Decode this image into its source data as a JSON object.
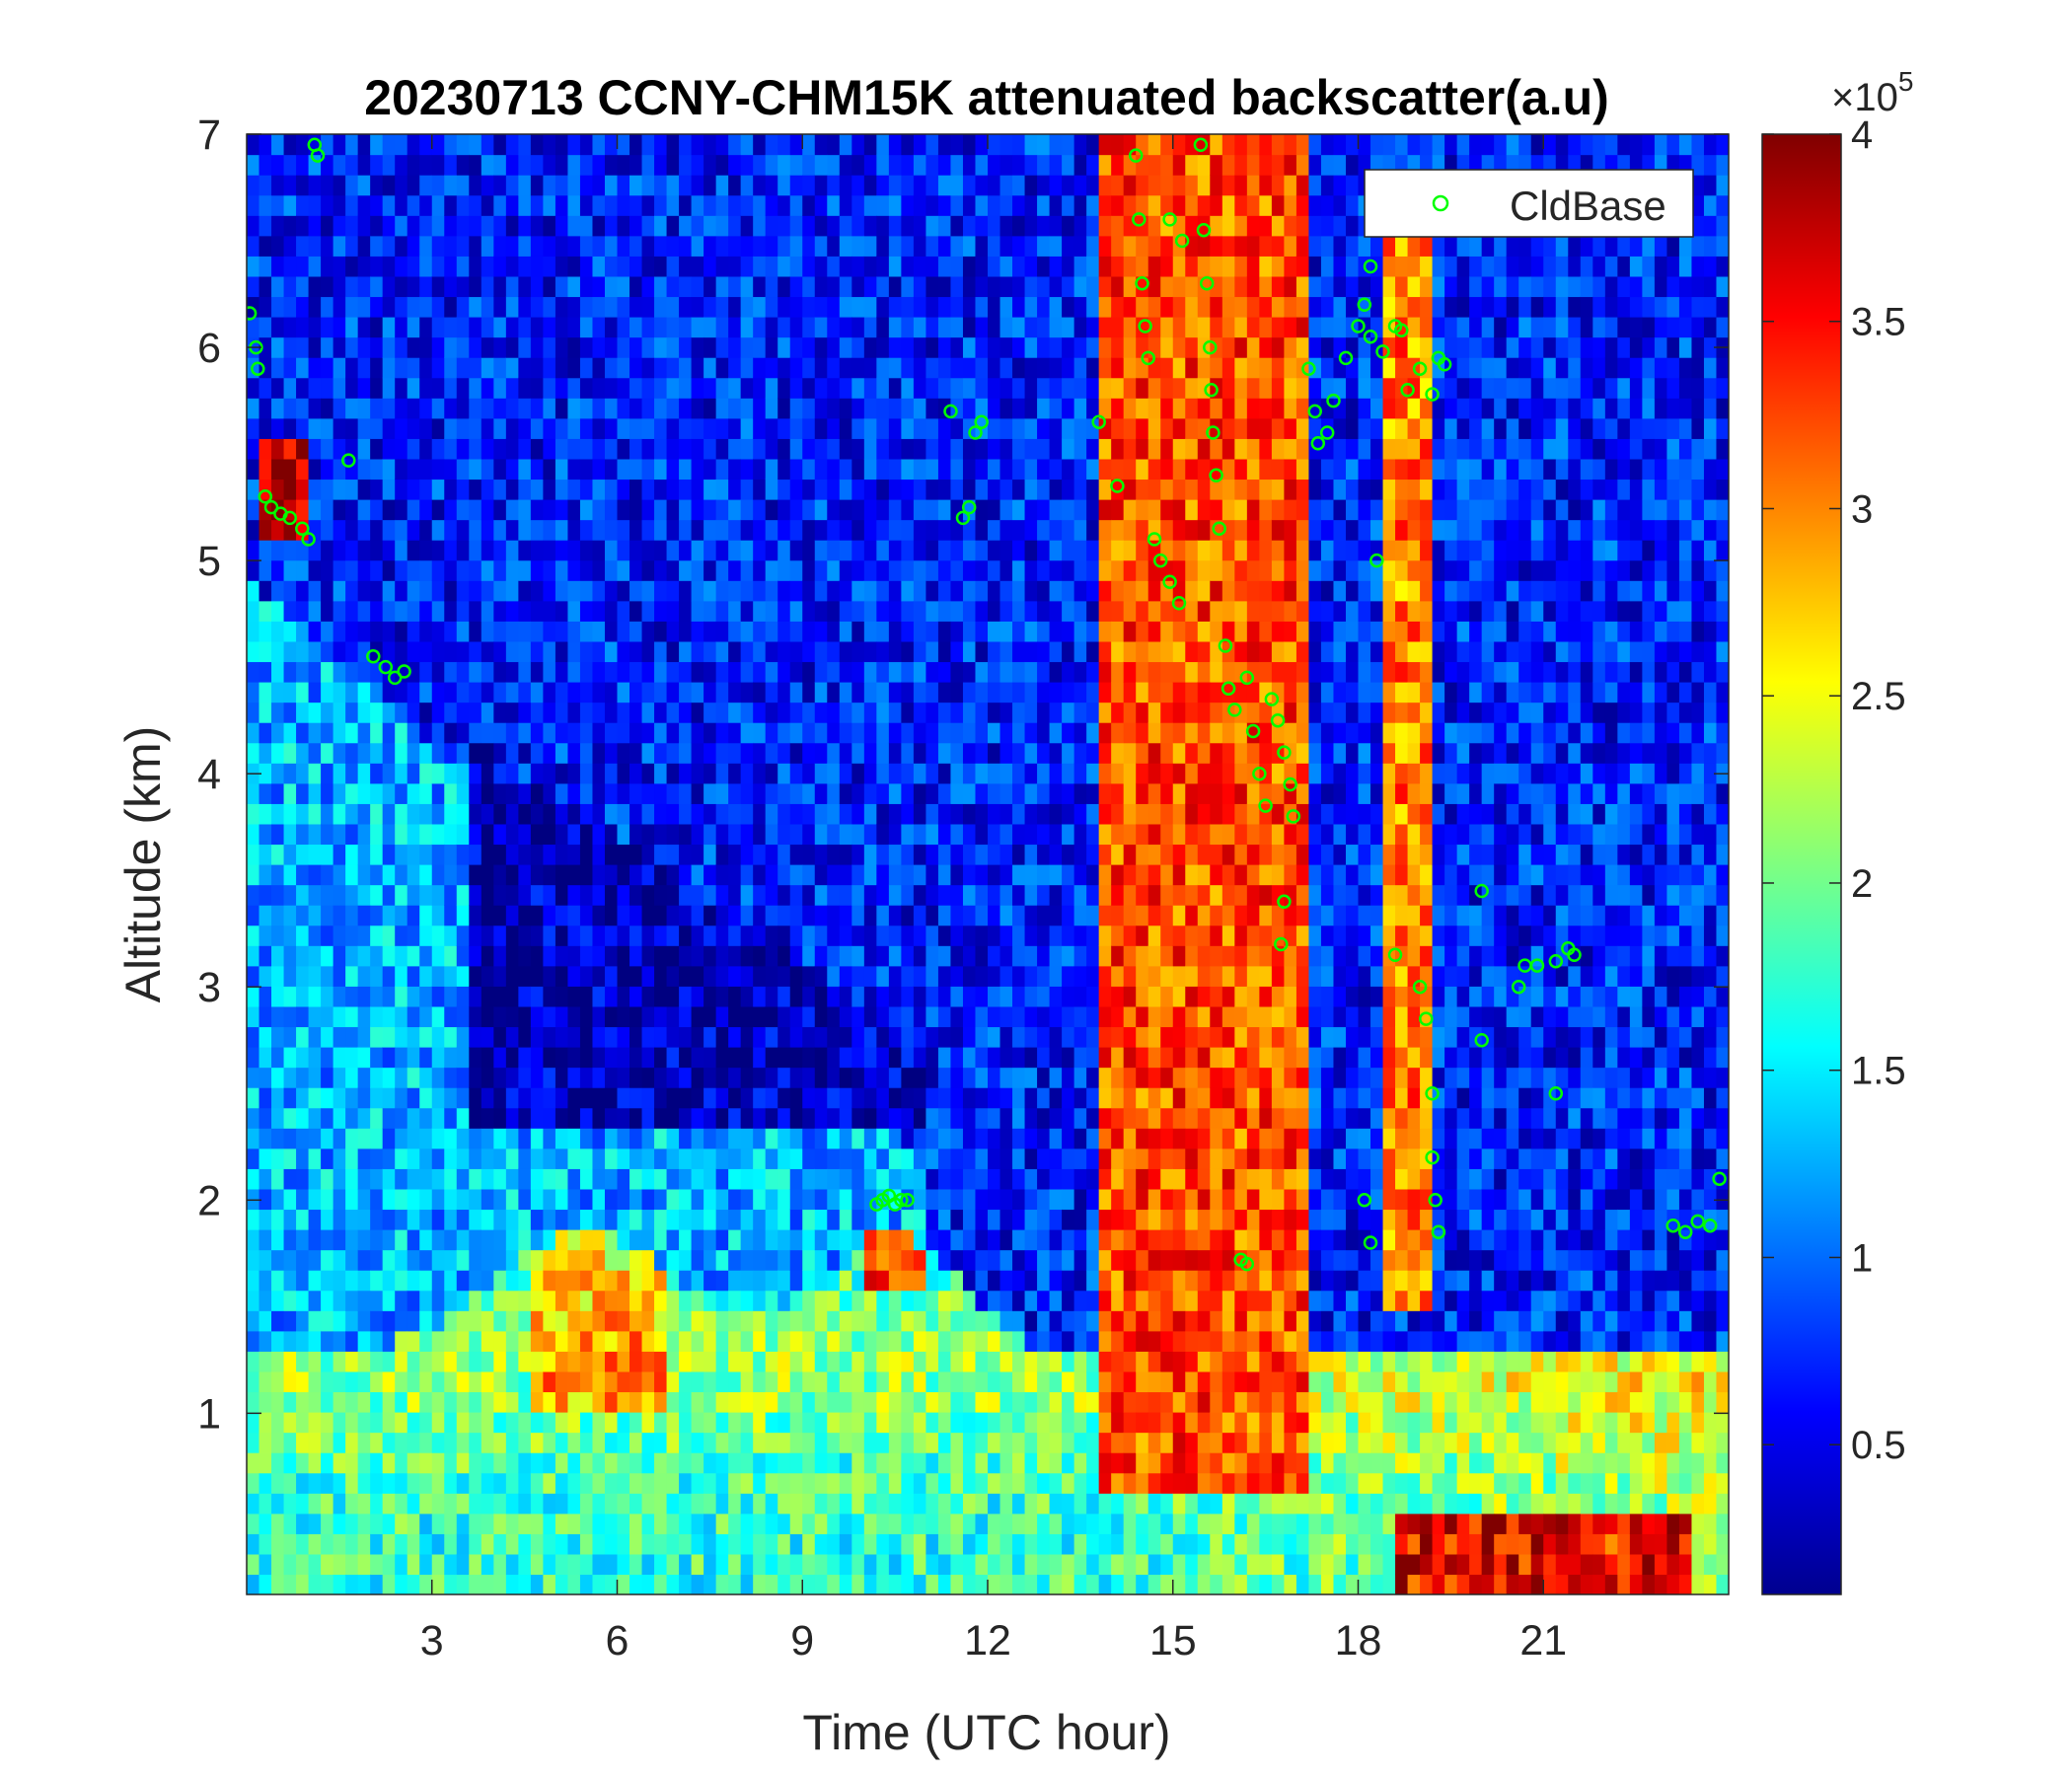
{
  "chart_data": {
    "type": "heatmap",
    "title": "20230713 CCNY-CHM15K attenuated backscatter(a.u)",
    "xlabel": "Time (UTC hour)",
    "ylabel": "Altitude (km)",
    "xlim": [
      0,
      24
    ],
    "ylim": [
      0.15,
      7
    ],
    "x_ticks": [
      3,
      6,
      9,
      12,
      15,
      18,
      21
    ],
    "y_ticks": [
      1,
      2,
      3,
      4,
      5,
      6,
      7
    ],
    "colorbar": {
      "clim": [
        10000,
        400000
      ],
      "ticks": [
        0.5,
        1,
        1.5,
        2,
        2.5,
        3,
        3.5,
        4
      ],
      "ticklabels": [
        "0.5",
        "1",
        "1.5",
        "2",
        "2.5",
        "3",
        "3.5",
        "4"
      ],
      "exponent_label": "×10",
      "exponent_power": "5",
      "colormap": "jet"
    },
    "legend": {
      "label": "CldBase",
      "position": "top-right",
      "marker_color": "#00ff00"
    },
    "series": [
      {
        "name": "CldBase",
        "marker": "circle",
        "color": "#00ff00",
        "points": [
          [
            0.05,
            6.16
          ],
          [
            0.15,
            6.0
          ],
          [
            0.18,
            5.9
          ],
          [
            0.3,
            5.3
          ],
          [
            0.4,
            5.25
          ],
          [
            0.55,
            5.22
          ],
          [
            0.7,
            5.2
          ],
          [
            0.9,
            5.15
          ],
          [
            1.0,
            5.1
          ],
          [
            1.1,
            6.95
          ],
          [
            1.15,
            6.9
          ],
          [
            1.65,
            5.47
          ],
          [
            2.05,
            4.55
          ],
          [
            2.25,
            4.5
          ],
          [
            2.4,
            4.45
          ],
          [
            2.55,
            4.48
          ],
          [
            10.2,
            1.98
          ],
          [
            10.3,
            2.0
          ],
          [
            10.4,
            2.02
          ],
          [
            10.5,
            1.98
          ],
          [
            10.6,
            2.0
          ],
          [
            10.7,
            2.0
          ],
          [
            11.4,
            5.7
          ],
          [
            11.6,
            5.2
          ],
          [
            11.7,
            5.25
          ],
          [
            11.8,
            5.6
          ],
          [
            11.9,
            5.65
          ],
          [
            13.8,
            5.65
          ],
          [
            14.1,
            5.35
          ],
          [
            14.4,
            6.9
          ],
          [
            14.45,
            6.6
          ],
          [
            14.5,
            6.3
          ],
          [
            14.55,
            6.1
          ],
          [
            14.6,
            5.95
          ],
          [
            14.7,
            5.1
          ],
          [
            14.8,
            5.0
          ],
          [
            14.95,
            4.9
          ],
          [
            15.1,
            4.8
          ],
          [
            14.95,
            6.6
          ],
          [
            15.15,
            6.5
          ],
          [
            15.45,
            6.95
          ],
          [
            15.5,
            6.55
          ],
          [
            15.55,
            6.3
          ],
          [
            15.6,
            6.0
          ],
          [
            15.62,
            5.8
          ],
          [
            15.65,
            5.6
          ],
          [
            15.7,
            5.4
          ],
          [
            15.75,
            5.15
          ],
          [
            15.85,
            4.6
          ],
          [
            15.9,
            4.4
          ],
          [
            16.0,
            4.3
          ],
          [
            16.1,
            1.72
          ],
          [
            16.2,
            1.7
          ],
          [
            16.2,
            4.45
          ],
          [
            16.3,
            4.2
          ],
          [
            16.4,
            4.0
          ],
          [
            16.5,
            3.85
          ],
          [
            16.6,
            4.35
          ],
          [
            16.7,
            4.25
          ],
          [
            16.8,
            4.1
          ],
          [
            16.9,
            3.95
          ],
          [
            16.95,
            3.8
          ],
          [
            16.8,
            3.4
          ],
          [
            16.75,
            3.2
          ],
          [
            17.2,
            5.9
          ],
          [
            17.3,
            5.7
          ],
          [
            17.35,
            5.55
          ],
          [
            17.5,
            5.6
          ],
          [
            17.6,
            5.75
          ],
          [
            17.8,
            5.95
          ],
          [
            18.0,
            6.1
          ],
          [
            18.1,
            6.2
          ],
          [
            18.2,
            6.05
          ],
          [
            18.4,
            5.98
          ],
          [
            18.6,
            6.1
          ],
          [
            18.7,
            6.08
          ],
          [
            18.8,
            5.8
          ],
          [
            19.0,
            5.9
          ],
          [
            19.2,
            5.78
          ],
          [
            19.3,
            5.95
          ],
          [
            19.4,
            5.92
          ],
          [
            18.2,
            6.38
          ],
          [
            18.3,
            5.0
          ],
          [
            18.6,
            3.15
          ],
          [
            19.0,
            3.0
          ],
          [
            19.1,
            2.85
          ],
          [
            19.2,
            2.5
          ],
          [
            19.2,
            2.2
          ],
          [
            19.25,
            2.0
          ],
          [
            19.3,
            1.85
          ],
          [
            18.2,
            1.8
          ],
          [
            18.1,
            2.0
          ],
          [
            20.0,
            3.45
          ],
          [
            20.0,
            2.75
          ],
          [
            20.6,
            3.0
          ],
          [
            20.7,
            3.1
          ],
          [
            20.9,
            3.1
          ],
          [
            21.2,
            3.12
          ],
          [
            21.4,
            3.18
          ],
          [
            21.5,
            3.15
          ],
          [
            21.2,
            2.5
          ],
          [
            23.1,
            1.88
          ],
          [
            23.3,
            1.85
          ],
          [
            23.5,
            1.9
          ],
          [
            23.7,
            1.88
          ],
          [
            23.85,
            2.1
          ]
        ]
      }
    ]
  }
}
